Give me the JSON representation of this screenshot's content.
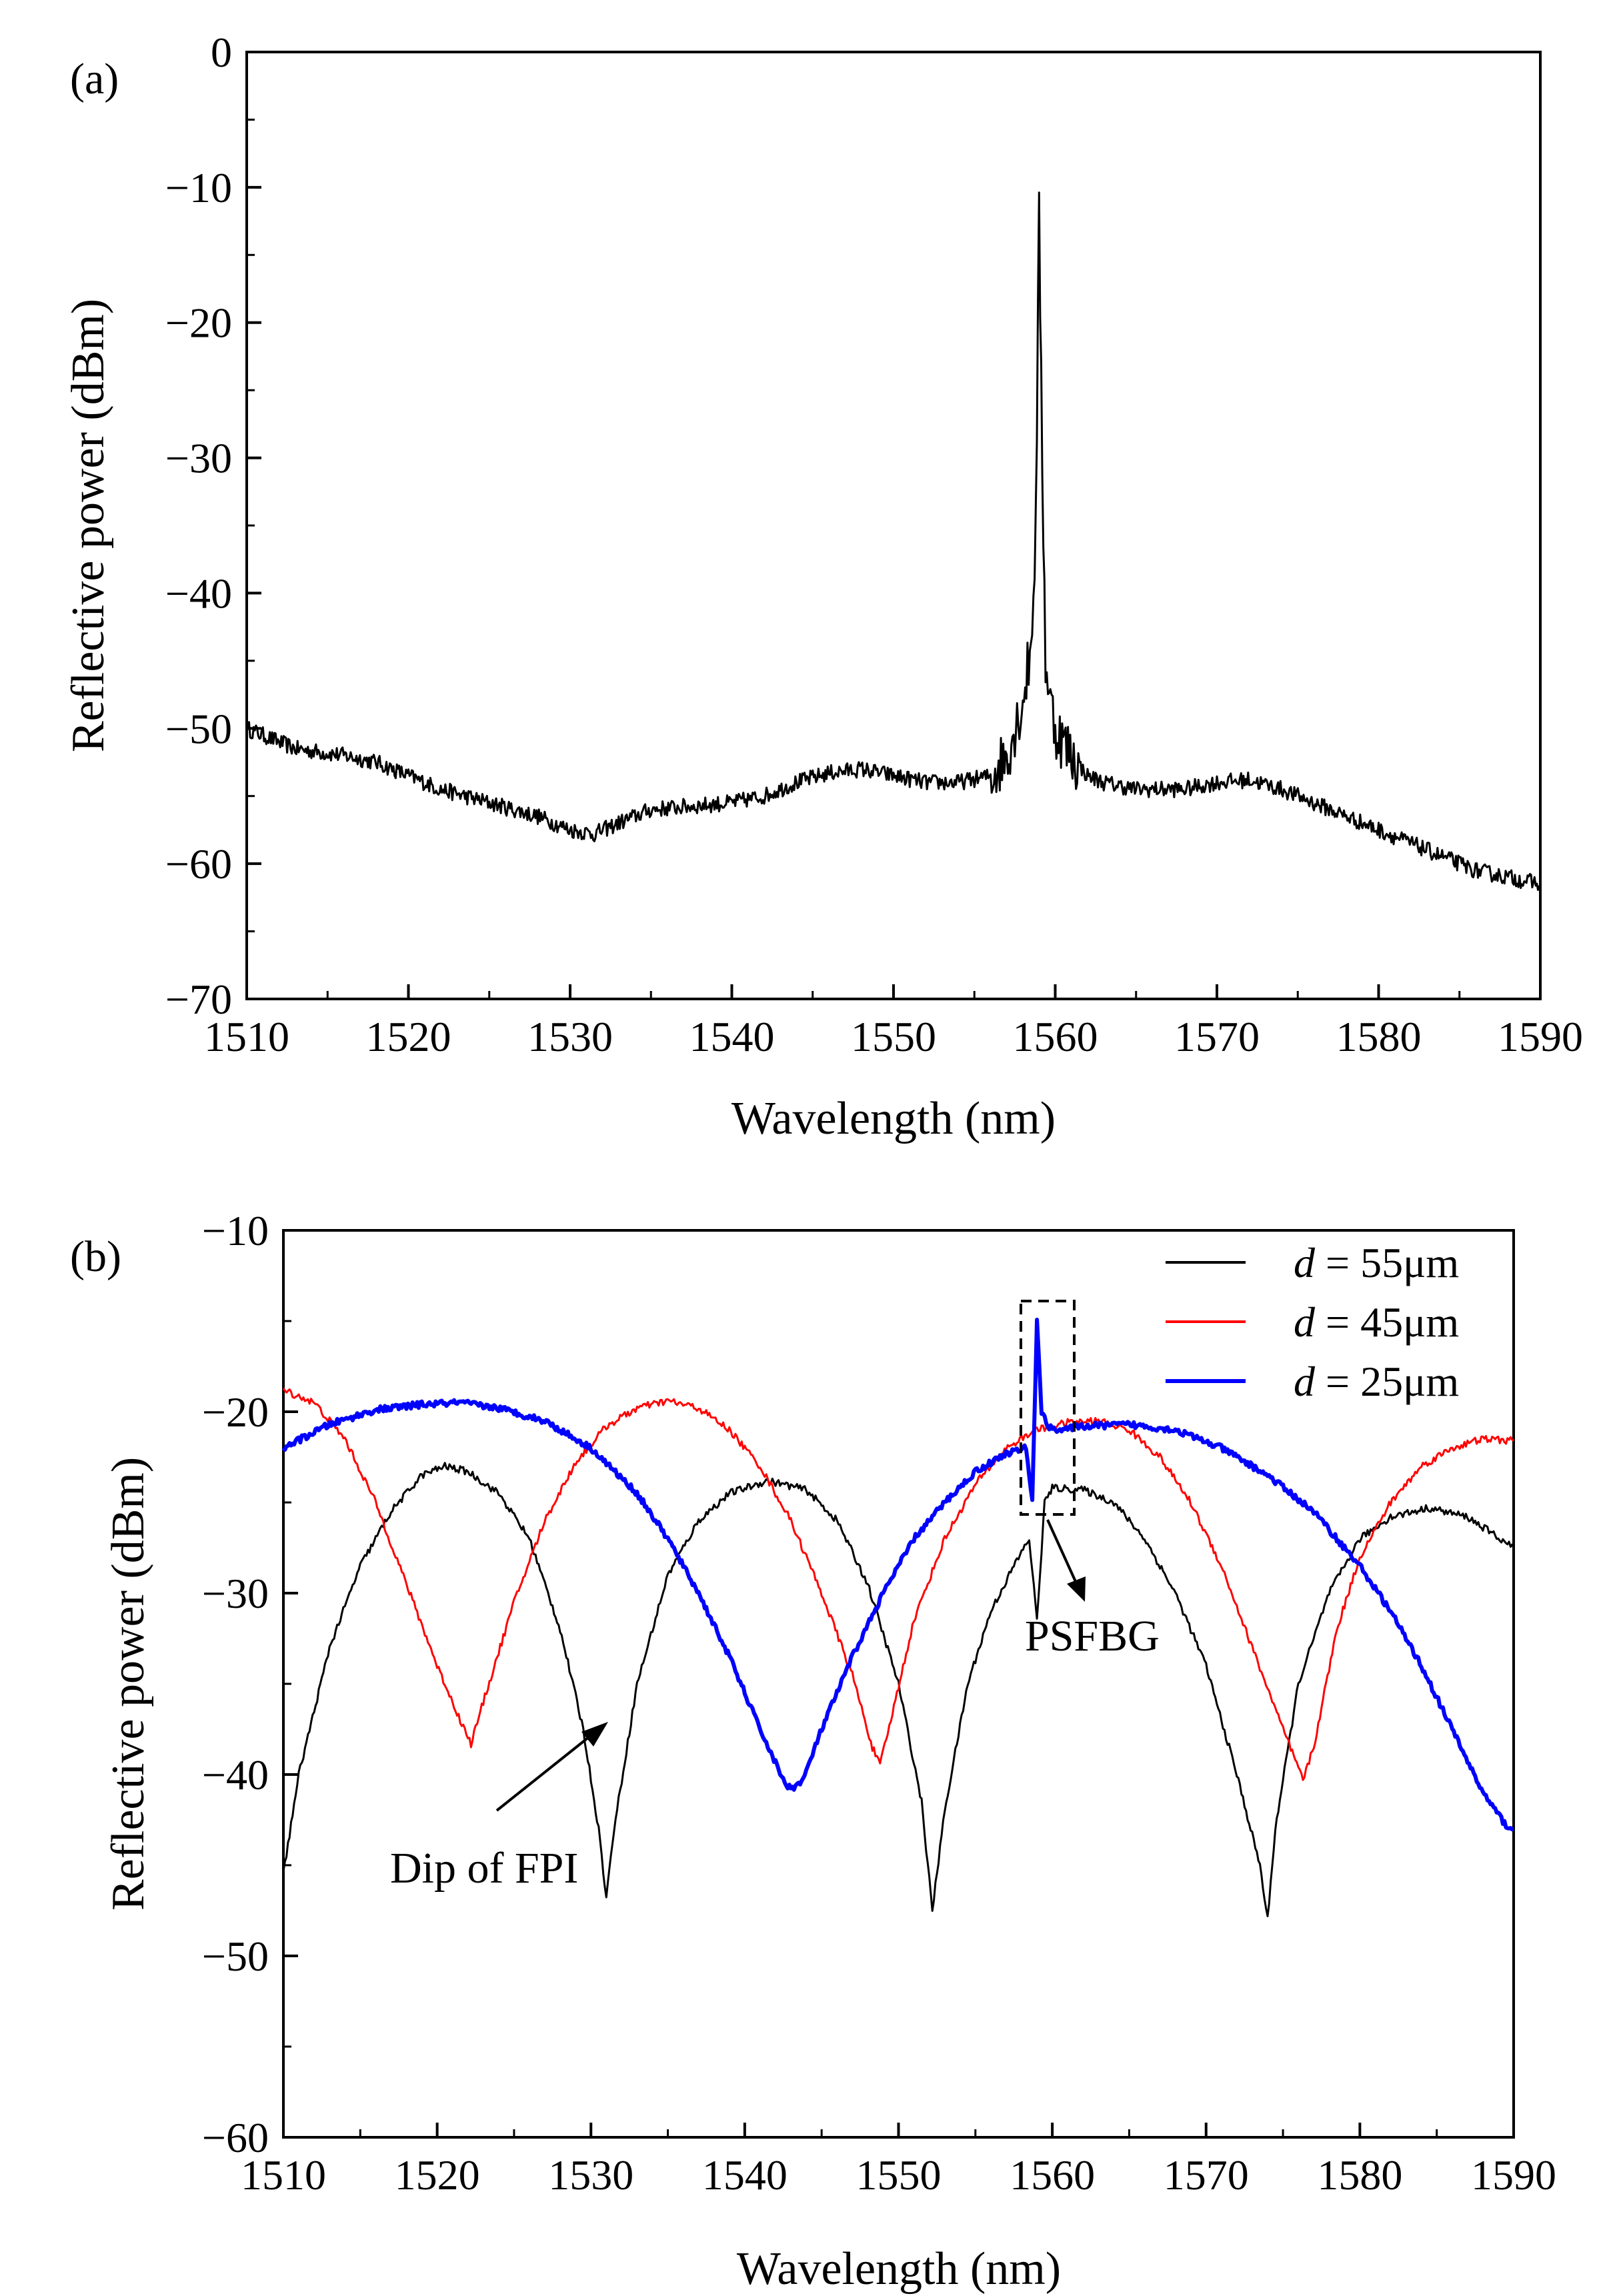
{
  "chart_data": [
    {
      "panel_label": "(a)",
      "type": "line",
      "xlabel": "Wavelength (nm)",
      "ylabel": "Reflective power (dBm)",
      "xlim": [
        1510,
        1590
      ],
      "ylim": [
        -70,
        0
      ],
      "xticks": [
        1510,
        1520,
        1530,
        1540,
        1550,
        1560,
        1570,
        1580,
        1590
      ],
      "yticks": [
        0,
        -10,
        -20,
        -30,
        -40,
        -50,
        -60,
        -70
      ],
      "xtick_labels": [
        "1510",
        "1520",
        "1530",
        "1540",
        "1550",
        "1560",
        "1570",
        "1580",
        "1590"
      ],
      "ytick_labels": [
        "0",
        "−10",
        "−20",
        "−30",
        "−40",
        "−50",
        "−60",
        "−70"
      ],
      "series": [
        {
          "color": "#000000",
          "x": [
            1510,
            1513,
            1516,
            1518,
            1520,
            1522,
            1525,
            1528,
            1530,
            1531.5,
            1533,
            1535,
            1537,
            1540,
            1542,
            1544,
            1546,
            1548,
            1550,
            1552,
            1554,
            1556,
            1557,
            1558,
            1558.5,
            1558.8,
            1559.0,
            1559.2,
            1559.4,
            1559.7,
            1560,
            1560.5,
            1561,
            1562,
            1563,
            1565,
            1568,
            1570,
            1572,
            1574,
            1576,
            1578,
            1580,
            1582,
            1584,
            1586,
            1588,
            1590
          ],
          "y": [
            -50,
            -51.5,
            -52,
            -52.5,
            -53.5,
            -54.5,
            -55.5,
            -56.5,
            -57.5,
            -57.8,
            -57,
            -56,
            -55.8,
            -55.5,
            -55,
            -54,
            -53.3,
            -53,
            -53.5,
            -54,
            -54,
            -53.5,
            -52,
            -48,
            -44,
            -35,
            -12.5,
            -30,
            -45,
            -48,
            -50,
            -51,
            -52,
            -53.5,
            -54,
            -54.5,
            -54.5,
            -54,
            -53.8,
            -54.5,
            -55.5,
            -56.5,
            -57.5,
            -58.5,
            -59.5,
            -60.5,
            -61,
            -61.5
          ]
        }
      ]
    },
    {
      "panel_label": "(b)",
      "type": "line",
      "xlabel": "Wavelength (nm)",
      "ylabel": "Reflective power (dBm)",
      "xlim": [
        1510,
        1590
      ],
      "ylim": [
        -60,
        -10
      ],
      "xticks": [
        1510,
        1520,
        1530,
        1540,
        1550,
        1560,
        1570,
        1580,
        1590
      ],
      "yticks": [
        -10,
        -20,
        -30,
        -40,
        -50,
        -60
      ],
      "xtick_labels": [
        "1510",
        "1520",
        "1530",
        "1540",
        "1550",
        "1560",
        "1570",
        "1580",
        "1590"
      ],
      "ytick_labels": [
        "−10",
        "−20",
        "−30",
        "−40",
        "−50",
        "−60"
      ],
      "legend_position": "top-right",
      "series": [
        {
          "legend_italic": "d",
          "legend_rest": " = 55μm",
          "color": "#000000",
          "x": [
            1510,
            1511,
            1513,
            1515,
            1517,
            1519,
            1520.5,
            1522,
            1524,
            1526,
            1528,
            1529.5,
            1530.5,
            1531,
            1531.5,
            1533,
            1535,
            1537,
            1539,
            1541.5,
            1544,
            1546,
            1548,
            1550,
            1551.5,
            1552.2,
            1553,
            1554.5,
            1556,
            1557.5,
            1558.5,
            1559,
            1559.5,
            1560,
            1562,
            1564,
            1566,
            1568,
            1570,
            1572,
            1573.5,
            1574,
            1574.5,
            1576,
            1578,
            1580,
            1582,
            1584.5,
            1587,
            1590
          ],
          "y": [
            -45.5,
            -40,
            -33,
            -28.5,
            -25.5,
            -23.5,
            -23,
            -23.3,
            -24.5,
            -27,
            -32,
            -37.5,
            -43,
            -46.8,
            -43,
            -35,
            -29,
            -26,
            -24.5,
            -23.8,
            -24.3,
            -26,
            -29.5,
            -35,
            -41.5,
            -47.5,
            -42,
            -35,
            -31,
            -28.5,
            -27,
            -31.5,
            -25,
            -24.2,
            -24.3,
            -25,
            -27,
            -30,
            -34,
            -40,
            -45,
            -48,
            -43,
            -35,
            -30,
            -27,
            -25.8,
            -25.3,
            -25.8,
            -27.5
          ]
        },
        {
          "legend_italic": "d",
          "legend_rest": " = 45μm",
          "color": "#ff0000",
          "x": [
            1510,
            1512,
            1514,
            1516,
            1518,
            1520,
            1521.5,
            1522.2,
            1523,
            1525,
            1527,
            1529,
            1531,
            1533,
            1535,
            1537,
            1539,
            1541,
            1543,
            1545,
            1547,
            1548.3,
            1548.8,
            1549.5,
            1551,
            1553,
            1555,
            1557,
            1559,
            1561,
            1563,
            1565,
            1567,
            1569,
            1571,
            1573,
            1575,
            1576.3,
            1577,
            1578.5,
            1580,
            1582,
            1584,
            1586,
            1588,
            1590
          ],
          "y": [
            -18.8,
            -19.5,
            -21.5,
            -25,
            -29.5,
            -34,
            -37,
            -38.3,
            -36,
            -30.5,
            -26,
            -22.8,
            -20.8,
            -19.8,
            -19.4,
            -19.8,
            -21,
            -23,
            -26,
            -30,
            -34.5,
            -38.5,
            -39.5,
            -37,
            -31.5,
            -27,
            -24,
            -22,
            -21,
            -20.6,
            -20.5,
            -21,
            -22.5,
            -25,
            -28.5,
            -33,
            -37.5,
            -40.3,
            -38.5,
            -32,
            -28,
            -25,
            -23,
            -22,
            -21.5,
            -21.6
          ]
        },
        {
          "legend_italic": "d",
          "legend_rest": " = 25μm",
          "color": "#0000ff",
          "x": [
            1510,
            1513,
            1516,
            1519,
            1521.5,
            1524,
            1527,
            1530,
            1533,
            1535,
            1537,
            1539,
            1541,
            1542.5,
            1543,
            1543.8,
            1545,
            1547,
            1549,
            1551,
            1553,
            1555,
            1557,
            1558.3,
            1558.7,
            1559.0,
            1559.3,
            1559.7,
            1560.5,
            1562,
            1565,
            1568,
            1571,
            1574,
            1577,
            1580,
            1582,
            1584,
            1586,
            1588,
            1589.5,
            1590
          ],
          "y": [
            -22,
            -20.7,
            -19.9,
            -19.6,
            -19.5,
            -19.8,
            -20.5,
            -22,
            -24.5,
            -27,
            -30,
            -33.5,
            -37.5,
            -40.3,
            -40.8,
            -40.3,
            -37.5,
            -33.5,
            -30,
            -27,
            -25,
            -23.3,
            -22.3,
            -22,
            -25,
            -14.8,
            -20,
            -20.8,
            -21,
            -20.8,
            -20.7,
            -21,
            -22,
            -23.5,
            -25.5,
            -28.5,
            -31,
            -34,
            -37.5,
            -41,
            -42.8,
            -43
          ]
        }
      ],
      "annotations": {
        "dip_label": "Dip of FPI",
        "psfbg_label": "PSFBG"
      }
    }
  ]
}
